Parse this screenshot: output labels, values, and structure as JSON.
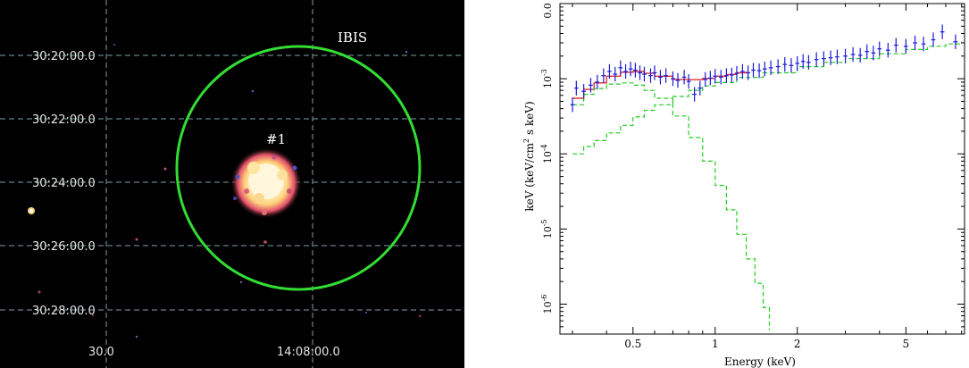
{
  "image_panel": {
    "ra_labels": [
      "30.0",
      "14:08:00.0"
    ],
    "dec_labels": [
      "30:20:00.0",
      "30:22:00.0",
      "30:24:00.0",
      "30:26:00.0",
      "30:28:00.0"
    ],
    "instrument_label": "IBIS",
    "source_label": "#1",
    "colors": {
      "background": "#000000",
      "grid": "#7fa0a6",
      "circle": "#33dd33",
      "source": "#ffe9b0"
    }
  },
  "chart_data": {
    "type": "scatter",
    "xlabel": "Energy (keV)",
    "ylabel": "keV (keV/cm² s keV)",
    "ylabel_parts": {
      "main": "keV (keV/cm",
      "sup": "2",
      "tail": " s keV)"
    },
    "xscale": "log",
    "yscale": "log",
    "xlim": [
      0.27,
      8.2
    ],
    "ylim": [
      4e-07,
      0.01
    ],
    "x_ticks": [
      {
        "value": 0.5,
        "label": "0.5"
      },
      {
        "value": 1,
        "label": "1"
      },
      {
        "value": 2,
        "label": "2"
      },
      {
        "value": 5,
        "label": "5"
      }
    ],
    "y_ticks": [
      {
        "value": 1e-06,
        "base": "10",
        "exp": "-6"
      },
      {
        "value": 1e-05,
        "base": "10",
        "exp": "-5"
      },
      {
        "value": 0.0001,
        "base": "10",
        "exp": "-4"
      },
      {
        "value": 0.001,
        "base": "10",
        "exp": "-3"
      },
      {
        "value": 0.01,
        "base": "0.0",
        "exp": ""
      }
    ],
    "data_points": [
      [
        0.3,
        0.00045
      ],
      [
        0.31,
        0.00075
      ],
      [
        0.33,
        0.00068
      ],
      [
        0.35,
        0.00082
      ],
      [
        0.37,
        0.0009
      ],
      [
        0.39,
        0.0011
      ],
      [
        0.41,
        0.00125
      ],
      [
        0.43,
        0.00115
      ],
      [
        0.45,
        0.0014
      ],
      [
        0.47,
        0.00125
      ],
      [
        0.49,
        0.00135
      ],
      [
        0.51,
        0.0013
      ],
      [
        0.53,
        0.0012
      ],
      [
        0.55,
        0.00115
      ],
      [
        0.58,
        0.0011
      ],
      [
        0.6,
        0.0012
      ],
      [
        0.63,
        0.00105
      ],
      [
        0.66,
        0.0011
      ],
      [
        0.7,
        0.001
      ],
      [
        0.73,
        0.00095
      ],
      [
        0.77,
        0.00105
      ],
      [
        0.8,
        0.00092
      ],
      [
        0.84,
        0.00062
      ],
      [
        0.88,
        0.00075
      ],
      [
        0.92,
        0.00098
      ],
      [
        0.96,
        0.00102
      ],
      [
        1.0,
        0.00108
      ],
      [
        1.05,
        0.00105
      ],
      [
        1.1,
        0.0011
      ],
      [
        1.15,
        0.00112
      ],
      [
        1.2,
        0.00118
      ],
      [
        1.26,
        0.00125
      ],
      [
        1.32,
        0.0012
      ],
      [
        1.38,
        0.0013
      ],
      [
        1.45,
        0.00128
      ],
      [
        1.52,
        0.00135
      ],
      [
        1.6,
        0.0014
      ],
      [
        1.7,
        0.00145
      ],
      [
        1.8,
        0.00155
      ],
      [
        1.9,
        0.0015
      ],
      [
        2.0,
        0.0016
      ],
      [
        2.1,
        0.0017
      ],
      [
        2.2,
        0.00165
      ],
      [
        2.35,
        0.0018
      ],
      [
        2.5,
        0.00185
      ],
      [
        2.65,
        0.0019
      ],
      [
        2.8,
        0.00195
      ],
      [
        3.0,
        0.002
      ],
      [
        3.2,
        0.0021
      ],
      [
        3.4,
        0.00205
      ],
      [
        3.6,
        0.0023
      ],
      [
        3.8,
        0.0022
      ],
      [
        4.0,
        0.0025
      ],
      [
        4.3,
        0.0024
      ],
      [
        4.6,
        0.0028
      ],
      [
        5.0,
        0.0027
      ],
      [
        5.4,
        0.003
      ],
      [
        5.8,
        0.0029
      ],
      [
        6.3,
        0.0033
      ],
      [
        6.8,
        0.0042
      ],
      [
        7.6,
        0.0031
      ]
    ],
    "series": [
      {
        "role": "total model",
        "color": "#e03030",
        "points": [
          [
            0.3,
            0.00055
          ],
          [
            0.33,
            0.00072
          ],
          [
            0.36,
            0.00088
          ],
          [
            0.4,
            0.00108
          ],
          [
            0.45,
            0.00122
          ],
          [
            0.5,
            0.00125
          ],
          [
            0.55,
            0.00118
          ],
          [
            0.6,
            0.00108
          ],
          [
            0.7,
            0.00098
          ],
          [
            0.8,
            0.00097
          ],
          [
            0.9,
            0.00101
          ],
          [
            1.0,
            0.00108
          ],
          [
            1.1,
            0.00114
          ],
          [
            1.2,
            0.0012
          ],
          [
            1.3,
            0.00125
          ]
        ]
      },
      {
        "role": "soft component",
        "color": "#22cc22",
        "points": [
          [
            0.3,
            0.00045
          ],
          [
            0.33,
            0.00062
          ],
          [
            0.36,
            0.00074
          ],
          [
            0.4,
            0.00085
          ],
          [
            0.45,
            0.00088
          ],
          [
            0.5,
            0.00082
          ],
          [
            0.55,
            0.0007
          ],
          [
            0.6,
            0.00055
          ],
          [
            0.7,
            0.00032
          ],
          [
            0.8,
            0.000165
          ],
          [
            0.9,
            8e-05
          ],
          [
            1.0,
            3.8e-05
          ],
          [
            1.1,
            1.8e-05
          ],
          [
            1.2,
            8.5e-06
          ],
          [
            1.3,
            4e-06
          ],
          [
            1.4,
            1.9e-06
          ],
          [
            1.5,
            9e-07
          ],
          [
            1.58,
            4.5e-07
          ]
        ]
      },
      {
        "role": "hard component",
        "color": "#22cc22",
        "points": [
          [
            0.3,
            0.0001
          ],
          [
            0.33,
            0.000125
          ],
          [
            0.36,
            0.00015
          ],
          [
            0.4,
            0.00019
          ],
          [
            0.45,
            0.00024
          ],
          [
            0.5,
            0.00031
          ],
          [
            0.55,
            0.00038
          ],
          [
            0.6,
            0.00045
          ],
          [
            0.7,
            0.00058
          ],
          [
            0.8,
            0.0007
          ],
          [
            0.9,
            0.0008
          ],
          [
            1.0,
            0.00089
          ],
          [
            1.2,
            0.00104
          ],
          [
            1.5,
            0.0012
          ],
          [
            2.0,
            0.00145
          ],
          [
            2.5,
            0.00165
          ],
          [
            3.0,
            0.00185
          ],
          [
            4.0,
            0.00215
          ],
          [
            5.0,
            0.00245
          ],
          [
            6.0,
            0.0027
          ],
          [
            7.0,
            0.0029
          ],
          [
            8.0,
            0.0031
          ]
        ]
      }
    ],
    "grid": false,
    "legend": "none",
    "colors": {
      "data": "#1a1adb",
      "axis": "#000000"
    }
  }
}
